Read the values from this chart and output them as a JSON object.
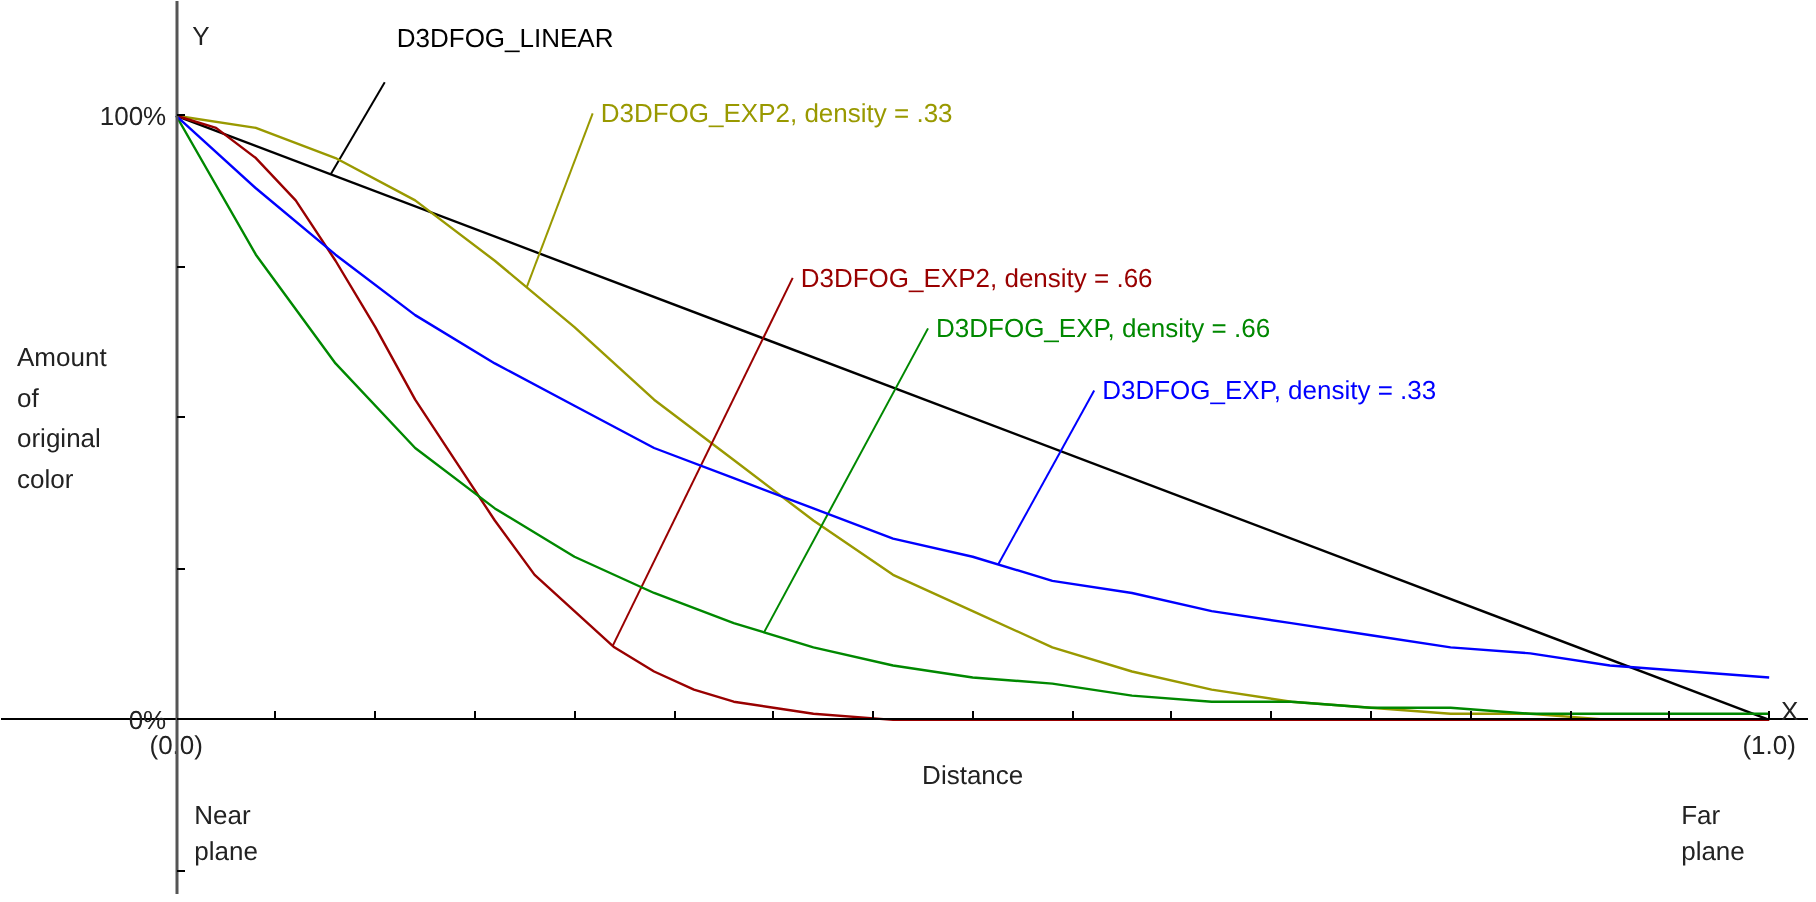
{
  "chart_data": {
    "type": "line",
    "xlabel": "Distance",
    "ylabel": "Amount\nof\noriginal\ncolor",
    "series": [
      {
        "name": "D3DFOG_LINEAR",
        "color": "#000000",
        "x": [
          0,
          1
        ],
        "values": [
          1,
          0
        ]
      },
      {
        "name": "D3DFOG_EXP2, density = .33",
        "color": "#999900",
        "x": [
          0,
          0.05,
          0.1,
          0.15,
          0.2,
          0.25,
          0.3,
          0.35,
          0.4,
          0.45,
          0.5,
          0.55,
          0.6,
          0.65,
          0.7,
          0.75,
          0.8,
          0.85,
          0.9,
          0.95,
          1
        ],
        "values": [
          1,
          0.98,
          0.93,
          0.86,
          0.76,
          0.65,
          0.53,
          0.43,
          0.33,
          0.24,
          0.18,
          0.12,
          0.08,
          0.05,
          0.03,
          0.02,
          0.01,
          0.01,
          0,
          0,
          0
        ]
      },
      {
        "name": "D3DFOG_EXP2, density = .66",
        "color": "#990000",
        "x": [
          0,
          0.025,
          0.05,
          0.075,
          0.1,
          0.125,
          0.15,
          0.175,
          0.2,
          0.225,
          0.25,
          0.275,
          0.3,
          0.325,
          0.35,
          0.375,
          0.4,
          0.45,
          0.5,
          0.6,
          0.7,
          0.8,
          0.9,
          1
        ],
        "values": [
          1,
          0.98,
          0.93,
          0.86,
          0.76,
          0.65,
          0.53,
          0.43,
          0.33,
          0.24,
          0.18,
          0.12,
          0.08,
          0.05,
          0.03,
          0.02,
          0.01,
          0,
          0,
          0,
          0,
          0,
          0,
          0
        ]
      },
      {
        "name": "D3DFOG_EXP, density = .66",
        "color": "#008800",
        "x": [
          0,
          0.05,
          0.1,
          0.15,
          0.2,
          0.25,
          0.3,
          0.35,
          0.4,
          0.45,
          0.5,
          0.55,
          0.6,
          0.65,
          0.7,
          0.75,
          0.8,
          0.85,
          0.9,
          0.95,
          1
        ],
        "values": [
          1,
          0.77,
          0.59,
          0.45,
          0.35,
          0.27,
          0.21,
          0.16,
          0.12,
          0.09,
          0.07,
          0.06,
          0.04,
          0.03,
          0.03,
          0.02,
          0.02,
          0.01,
          0.01,
          0.01,
          0.01
        ]
      },
      {
        "name": "D3DFOG_EXP, density = .33",
        "color": "#0000ff",
        "x": [
          0,
          0.05,
          0.1,
          0.15,
          0.2,
          0.25,
          0.3,
          0.35,
          0.4,
          0.45,
          0.5,
          0.55,
          0.6,
          0.65,
          0.7,
          0.75,
          0.8,
          0.85,
          0.9,
          0.95,
          1
        ],
        "values": [
          1,
          0.88,
          0.77,
          0.67,
          0.59,
          0.52,
          0.45,
          0.4,
          0.35,
          0.3,
          0.27,
          0.23,
          0.21,
          0.18,
          0.16,
          0.14,
          0.12,
          0.11,
          0.09,
          0.08,
          0.07
        ]
      }
    ],
    "xlim": [
      -0.11,
      1.025
    ],
    "ylim": [
      -0.29,
      1.19
    ],
    "xticks": [
      {
        "value": 0,
        "label": "(0.0)"
      },
      {
        "value": 0.0625,
        "label": null
      },
      {
        "value": 0.125,
        "label": null
      },
      {
        "value": 0.1875,
        "label": null
      },
      {
        "value": 0.25,
        "label": null
      },
      {
        "value": 0.3125,
        "label": null
      },
      {
        "value": 0.375,
        "label": null
      },
      {
        "value": 0.4375,
        "label": null
      },
      {
        "value": 0.5,
        "label": null
      },
      {
        "value": 0.5625,
        "label": null
      },
      {
        "value": 0.625,
        "label": null
      },
      {
        "value": 0.6875,
        "label": null
      },
      {
        "value": 0.75,
        "label": null
      },
      {
        "value": 0.8125,
        "label": null
      },
      {
        "value": 0.875,
        "label": null
      },
      {
        "value": 0.9375,
        "label": null
      },
      {
        "value": 1,
        "label": "(1.0)"
      }
    ],
    "yticks": [
      {
        "value": -0.25,
        "label": null
      },
      {
        "value": 0,
        "label": "0%"
      },
      {
        "value": 0.25,
        "label": null
      },
      {
        "value": 0.5,
        "label": null
      },
      {
        "value": 0.75,
        "label": null
      },
      {
        "value": 1,
        "label": "100%"
      }
    ],
    "annotations": [
      "Near plane",
      "Far plane",
      "X",
      "Y"
    ],
    "grid": false,
    "marker": "none",
    "line_style": "solid"
  }
}
